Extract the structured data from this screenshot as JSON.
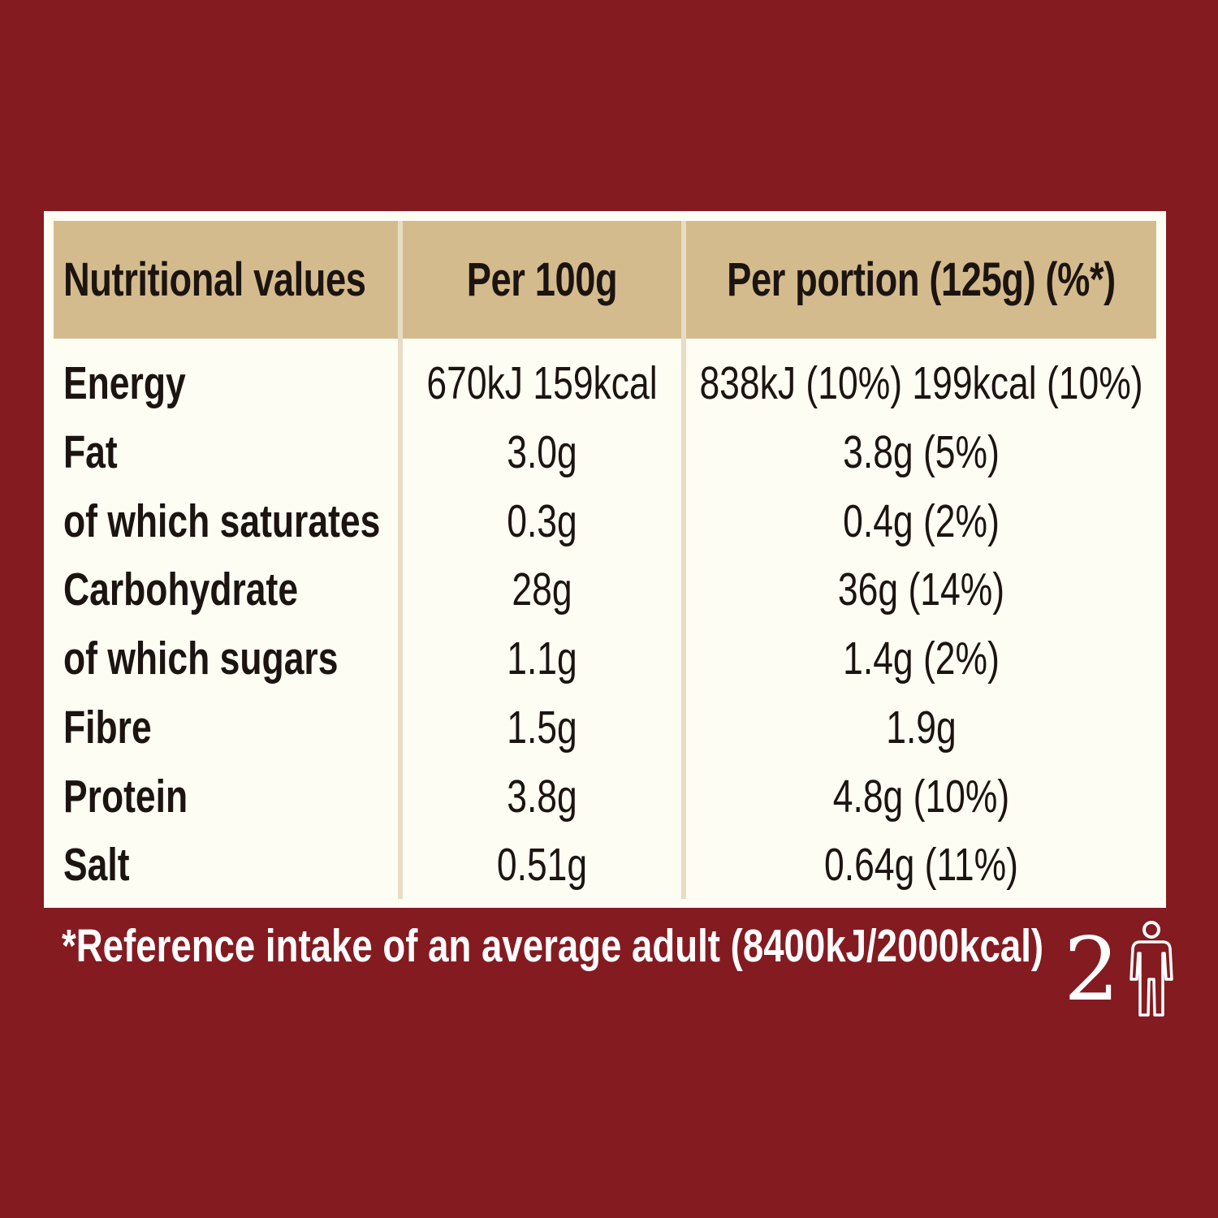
{
  "table": {
    "headers": {
      "nutrient": "Nutritional values",
      "per_100g": "Per 100g",
      "per_portion": "Per portion (125g) (%*)"
    },
    "rows": [
      {
        "label": "Energy",
        "per_100g": "670kJ 159kcal",
        "per_portion": "838kJ (10%) 199kcal (10%)"
      },
      {
        "label": "Fat",
        "per_100g": "3.0g",
        "per_portion": "3.8g (5%)"
      },
      {
        "label": "of which saturates",
        "per_100g": "0.3g",
        "per_portion": "0.4g (2%)"
      },
      {
        "label": "Carbohydrate",
        "per_100g": "28g",
        "per_portion": "36g (14%)"
      },
      {
        "label": "of which sugars",
        "per_100g": "1.1g",
        "per_portion": "1.4g (2%)"
      },
      {
        "label": "Fibre",
        "per_100g": "1.5g",
        "per_portion": "1.9g"
      },
      {
        "label": "Protein",
        "per_100g": "3.8g",
        "per_portion": "4.8g (10%)"
      },
      {
        "label": "Salt",
        "per_100g": "0.51g",
        "per_portion": "0.64g (11%)"
      }
    ]
  },
  "footnote": "*Reference intake of an average adult (8400kJ/2000kcal)",
  "portions": {
    "count": "2",
    "icon": "person-icon"
  },
  "colors": {
    "background": "#841b21",
    "header": "#d4bb8d",
    "card": "#fefdf4",
    "text": "#1c1410"
  }
}
